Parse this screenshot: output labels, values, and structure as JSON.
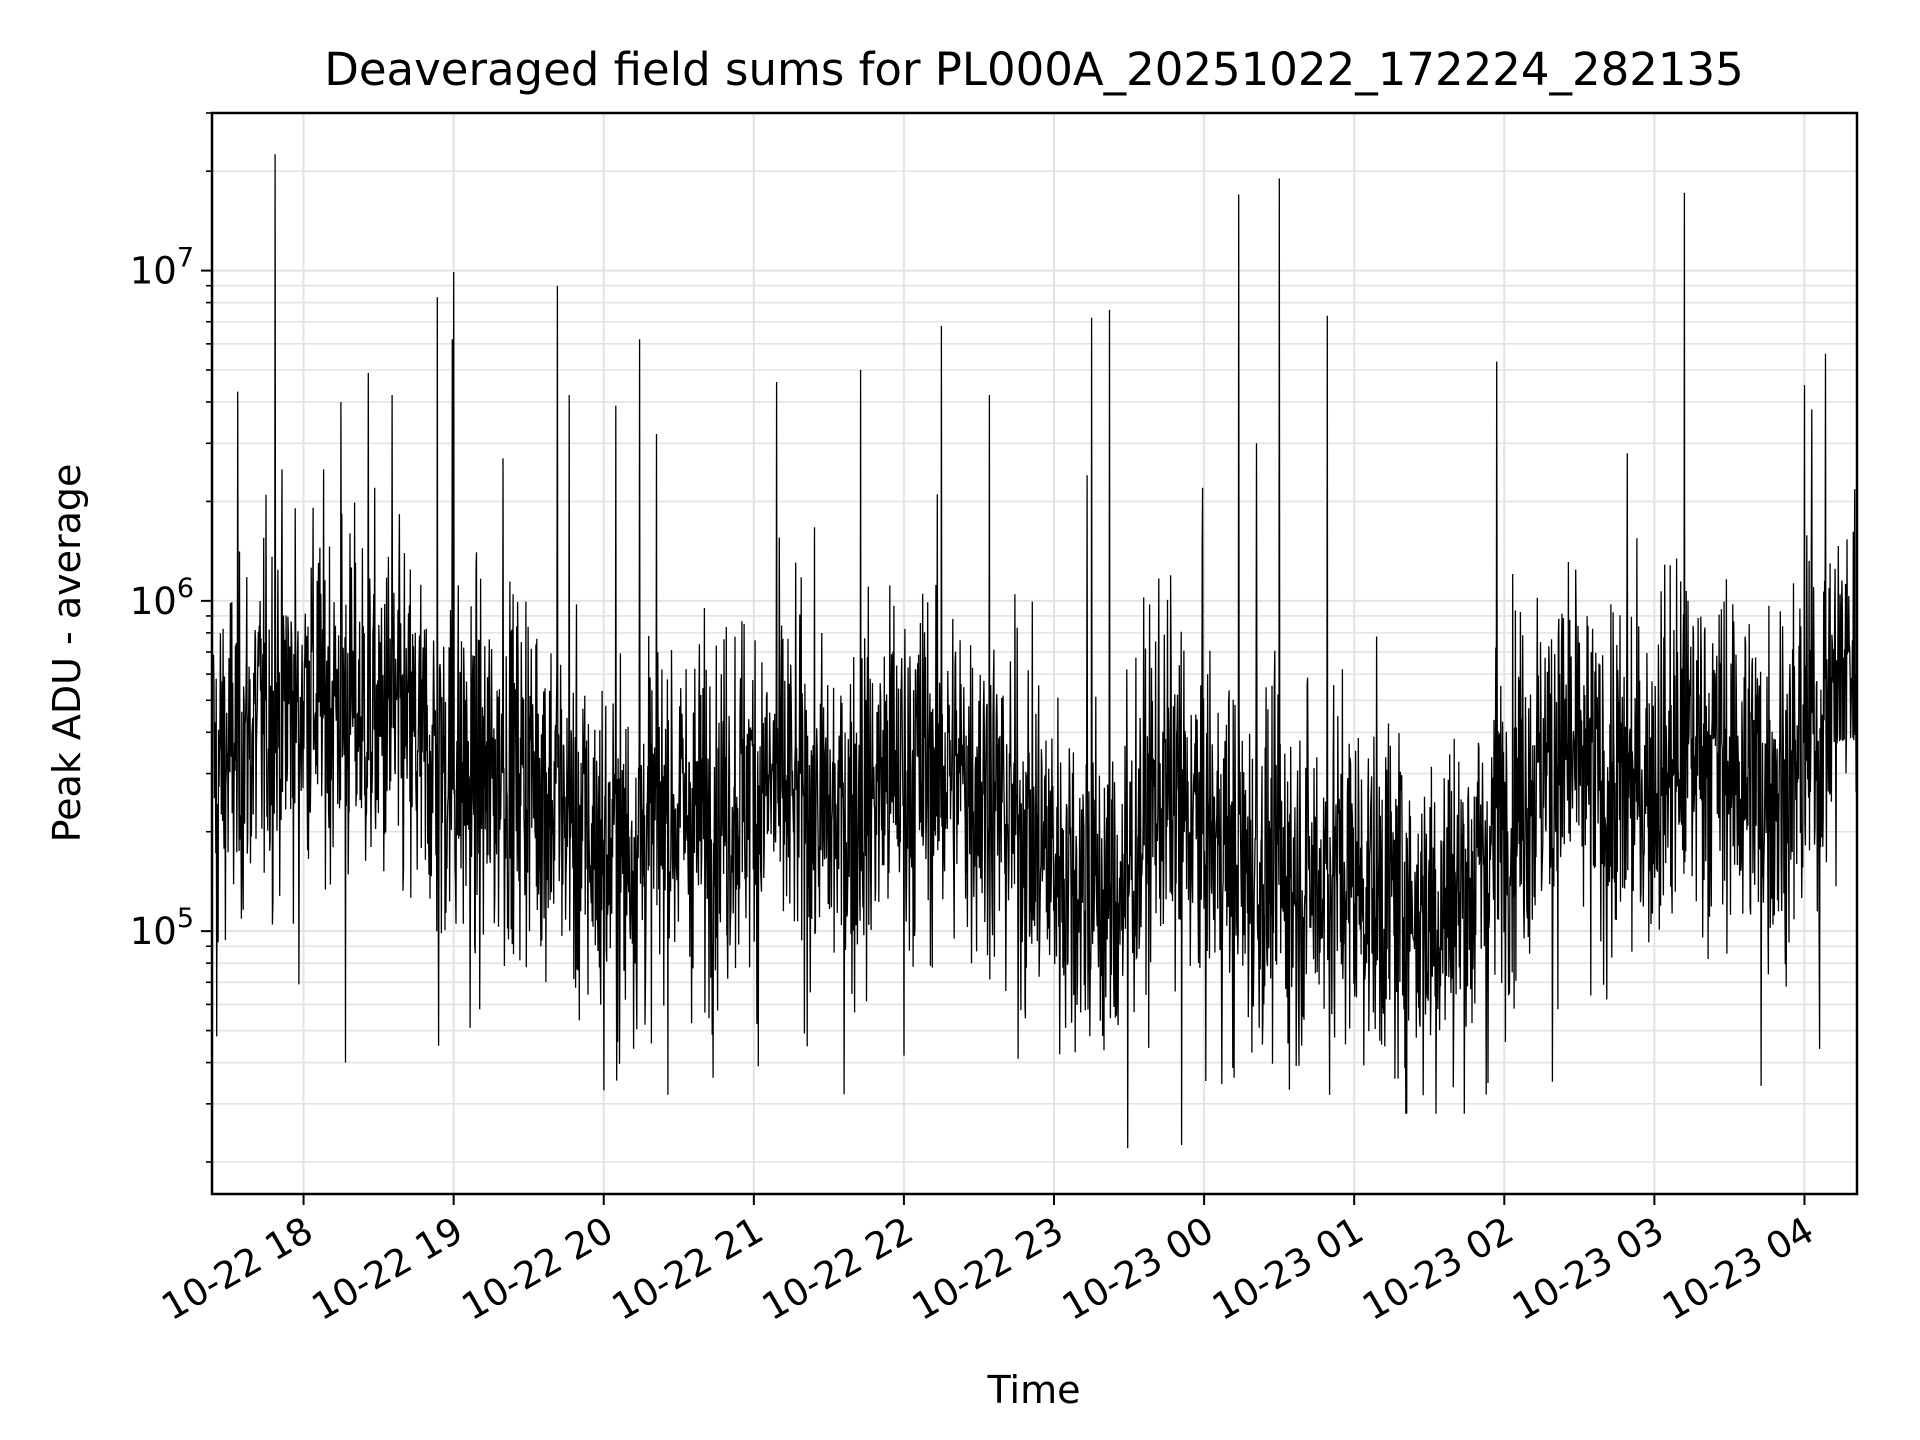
{
  "chart_data": {
    "type": "line",
    "title": "Deaveraged field sums for PL000A_20251022_172224_282135",
    "xlabel": "Time",
    "ylabel": "Peak ADU - average",
    "yscale": "log",
    "ylim": [
      16000,
      30000000
    ],
    "xlim_hours": [
      17.39,
      28.35
    ],
    "grid": true,
    "x_ticks": [
      {
        "hour": 18,
        "label": "10-22 18"
      },
      {
        "hour": 19,
        "label": "10-22 19"
      },
      {
        "hour": 20,
        "label": "10-22 20"
      },
      {
        "hour": 21,
        "label": "10-22 21"
      },
      {
        "hour": 22,
        "label": "10-22 22"
      },
      {
        "hour": 23,
        "label": "10-22 23"
      },
      {
        "hour": 24,
        "label": "10-23 00"
      },
      {
        "hour": 25,
        "label": "10-23 01"
      },
      {
        "hour": 26,
        "label": "10-23 02"
      },
      {
        "hour": 27,
        "label": "10-23 03"
      },
      {
        "hour": 28,
        "label": "10-23 04"
      }
    ],
    "y_ticks": [
      {
        "value": 100000,
        "base": "10",
        "exp": "5"
      },
      {
        "value": 1000000,
        "base": "10",
        "exp": "6"
      },
      {
        "value": 10000000,
        "base": "10",
        "exp": "7"
      }
    ],
    "baseline": [
      [
        17.4,
        300000
      ],
      [
        17.7,
        420000
      ],
      [
        18.0,
        550000
      ],
      [
        18.3,
        480000
      ],
      [
        18.6,
        420000
      ],
      [
        18.9,
        320000
      ],
      [
        19.2,
        280000
      ],
      [
        19.5,
        320000
      ],
      [
        19.8,
        200000
      ],
      [
        20.1,
        160000
      ],
      [
        20.4,
        230000
      ],
      [
        20.7,
        220000
      ],
      [
        21.0,
        280000
      ],
      [
        21.3,
        250000
      ],
      [
        21.6,
        210000
      ],
      [
        21.9,
        300000
      ],
      [
        22.2,
        320000
      ],
      [
        22.5,
        280000
      ],
      [
        22.8,
        200000
      ],
      [
        23.1,
        150000
      ],
      [
        23.4,
        120000
      ],
      [
        23.7,
        280000
      ],
      [
        24.0,
        200000
      ],
      [
        24.3,
        150000
      ],
      [
        24.6,
        140000
      ],
      [
        24.9,
        150000
      ],
      [
        25.2,
        130000
      ],
      [
        25.5,
        110000
      ],
      [
        25.8,
        140000
      ],
      [
        26.1,
        280000
      ],
      [
        26.4,
        350000
      ],
      [
        26.7,
        250000
      ],
      [
        27.0,
        300000
      ],
      [
        27.3,
        380000
      ],
      [
        27.6,
        300000
      ],
      [
        27.9,
        280000
      ],
      [
        28.2,
        550000
      ],
      [
        28.35,
        700000
      ]
    ],
    "spikes": [
      [
        17.81,
        22500000
      ],
      [
        17.56,
        4300000
      ],
      [
        18.25,
        4000000
      ],
      [
        18.43,
        4900000
      ],
      [
        18.59,
        4200000
      ],
      [
        18.89,
        8300000
      ],
      [
        19.0,
        9900000
      ],
      [
        18.99,
        6200000
      ],
      [
        19.69,
        9000000
      ],
      [
        19.77,
        4200000
      ],
      [
        20.08,
        3900000
      ],
      [
        20.24,
        6200000
      ],
      [
        20.35,
        3200000
      ],
      [
        21.15,
        4600000
      ],
      [
        21.71,
        5000000
      ],
      [
        22.25,
        6800000
      ],
      [
        22.57,
        4200000
      ],
      [
        23.25,
        7200000
      ],
      [
        23.37,
        7600000
      ],
      [
        23.22,
        2400000
      ],
      [
        24.23,
        17000000
      ],
      [
        24.5,
        19000000
      ],
      [
        24.82,
        7300000
      ],
      [
        24.35,
        3000000
      ],
      [
        25.95,
        5300000
      ],
      [
        26.82,
        2800000
      ],
      [
        27.2,
        17200000
      ],
      [
        28.0,
        4500000
      ],
      [
        28.14,
        5600000
      ],
      [
        28.05,
        3800000
      ],
      [
        23.99,
        2200000
      ],
      [
        19.33,
        2700000
      ]
    ],
    "dips": [
      [
        17.42,
        48000
      ],
      [
        18.28,
        40000
      ],
      [
        18.9,
        45000
      ],
      [
        20.0,
        33000
      ],
      [
        20.73,
        36000
      ],
      [
        21.03,
        39000
      ],
      [
        23.49,
        22000
      ],
      [
        23.85,
        22500
      ],
      [
        24.2,
        36000
      ],
      [
        25.88,
        32000
      ],
      [
        26.32,
        35000
      ],
      [
        27.71,
        34000
      ],
      [
        28.1,
        44000
      ],
      [
        19.11,
        51000
      ],
      [
        17.97,
        69000
      ],
      [
        22.0,
        42000
      ]
    ]
  }
}
